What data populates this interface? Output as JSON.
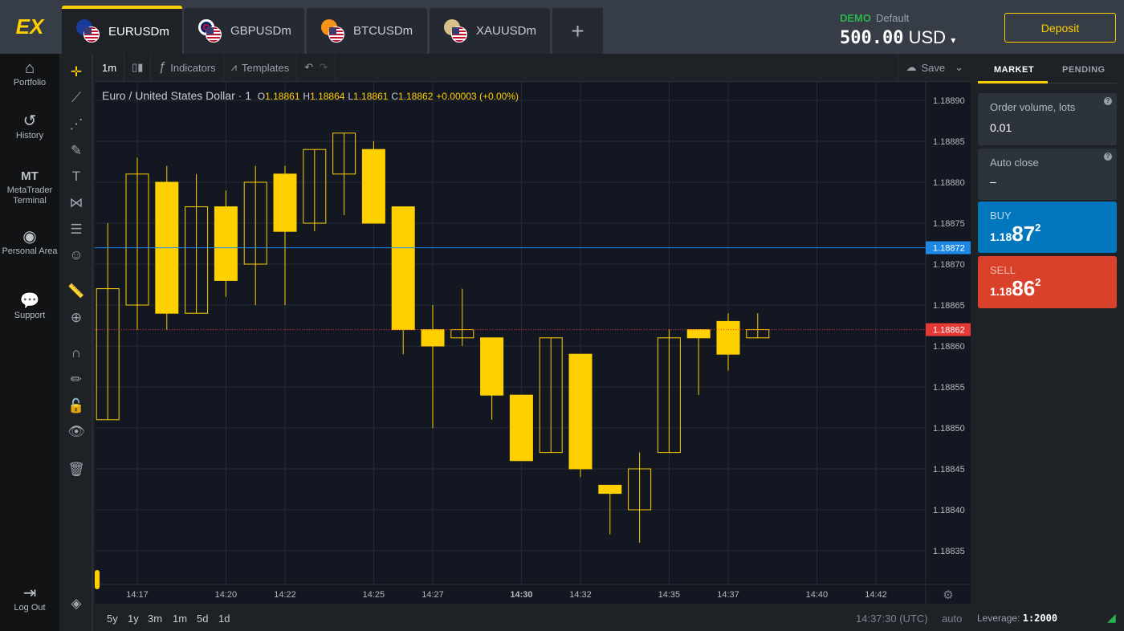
{
  "brand": {
    "logo": "EX",
    "accent": "#ffd000"
  },
  "tabs": [
    {
      "label": "EURUSDm",
      "active": true
    },
    {
      "label": "GBPUSDm"
    },
    {
      "label": "BTCUSDm"
    },
    {
      "label": "XAUUSDm"
    }
  ],
  "add_tab_icon": "plus-icon",
  "account": {
    "type": "DEMO",
    "name": "Default",
    "balance": "500.00",
    "currency": "USD",
    "deposit_label": "Deposit"
  },
  "nav": [
    {
      "label": "Portfolio",
      "icon": "briefcase-icon"
    },
    {
      "label": "History",
      "icon": "history-icon"
    },
    {
      "label": "MetaTrader Terminal",
      "icon_text": "MT"
    },
    {
      "label": "Personal Area",
      "icon": "user-icon"
    },
    {
      "label": "Support",
      "icon": "chat-icon"
    },
    {
      "label": "Log Out",
      "icon": "logout-icon"
    }
  ],
  "toolbar": {
    "interval": "1m",
    "indicators": "Indicators",
    "templates": "Templates",
    "save": "Save"
  },
  "legend": {
    "symbol": "Euro / United States Dollar",
    "interval": "1",
    "o_label": "O",
    "o": "1.18861",
    "h_label": "H",
    "h": "1.18864",
    "l_label": "L",
    "l": "1.18861",
    "c_label": "C",
    "c": "1.18862",
    "change": "+0.00003 (+0.00%)"
  },
  "ranges": [
    "5y",
    "1y",
    "3m",
    "1m",
    "5d",
    "1d"
  ],
  "status": {
    "time": "14:37:30 (UTC)",
    "scale": "auto",
    "leverage_label": "Leverage:",
    "leverage": "1:2000"
  },
  "order": {
    "tab_market": "MARKET",
    "tab_pending": "PENDING",
    "volume_label": "Order volume, lots",
    "volume": "0.01",
    "autoclose_label": "Auto close",
    "autoclose": "–",
    "buy_label": "BUY",
    "buy_prefix": "1.18",
    "buy_big": "87",
    "buy_sup": "2",
    "buy_color": "#0277bd",
    "sell_label": "SELL",
    "sell_prefix": "1.18",
    "sell_big": "86",
    "sell_sup": "2",
    "sell_color": "#d9412a"
  },
  "chart_data": {
    "type": "candlestick",
    "symbol": "EURUSDm",
    "interval": "1m",
    "y_ticks": [
      "1.18890",
      "1.18885",
      "1.18880",
      "1.18875",
      "1.18870",
      "1.18865",
      "1.18860",
      "1.18855",
      "1.18850",
      "1.18845",
      "1.18840",
      "1.18835"
    ],
    "ylim": [
      1.18831,
      1.18891
    ],
    "x_ticks": [
      "14:17",
      "14:20",
      "14:22",
      "14:25",
      "14:27",
      "14:30",
      "14:32",
      "14:35",
      "14:37",
      "14:40",
      "14:42"
    ],
    "xlim": [
      "14:15",
      "14:44"
    ],
    "ask_line": {
      "value": "1.18872",
      "color": "#1e88e5"
    },
    "bid_line": {
      "value": "1.18862",
      "color": "#e53935"
    },
    "candle_color": "#ffd000",
    "candles": [
      {
        "t": "14:16",
        "o": 1.18851,
        "h": 1.18875,
        "l": 1.18851,
        "c": 1.18867
      },
      {
        "t": "14:17",
        "o": 1.18865,
        "h": 1.18883,
        "l": 1.18862,
        "c": 1.18881
      },
      {
        "t": "14:18",
        "o": 1.1888,
        "h": 1.18882,
        "l": 1.18862,
        "c": 1.18864
      },
      {
        "t": "14:19",
        "o": 1.18864,
        "h": 1.18881,
        "l": 1.18864,
        "c": 1.18877
      },
      {
        "t": "14:20",
        "o": 1.18877,
        "h": 1.18879,
        "l": 1.18866,
        "c": 1.18868
      },
      {
        "t": "14:21",
        "o": 1.1887,
        "h": 1.18882,
        "l": 1.18865,
        "c": 1.1888
      },
      {
        "t": "14:22",
        "o": 1.18881,
        "h": 1.18882,
        "l": 1.18865,
        "c": 1.18874
      },
      {
        "t": "14:23",
        "o": 1.18875,
        "h": 1.18884,
        "l": 1.18874,
        "c": 1.18884
      },
      {
        "t": "14:24",
        "o": 1.18881,
        "h": 1.18886,
        "l": 1.18876,
        "c": 1.18886
      },
      {
        "t": "14:25",
        "o": 1.18884,
        "h": 1.18885,
        "l": 1.18875,
        "c": 1.18875
      },
      {
        "t": "14:26",
        "o": 1.18877,
        "h": 1.18877,
        "l": 1.18859,
        "c": 1.18862
      },
      {
        "t": "14:27",
        "o": 1.18862,
        "h": 1.18865,
        "l": 1.1885,
        "c": 1.1886
      },
      {
        "t": "14:28",
        "o": 1.18861,
        "h": 1.18867,
        "l": 1.1886,
        "c": 1.18862
      },
      {
        "t": "14:29",
        "o": 1.18861,
        "h": 1.18861,
        "l": 1.18851,
        "c": 1.18854
      },
      {
        "t": "14:30",
        "o": 1.18854,
        "h": 1.18854,
        "l": 1.18846,
        "c": 1.18846
      },
      {
        "t": "14:31",
        "o": 1.18847,
        "h": 1.18861,
        "l": 1.18847,
        "c": 1.18861
      },
      {
        "t": "14:32",
        "o": 1.18859,
        "h": 1.18859,
        "l": 1.18844,
        "c": 1.18845
      },
      {
        "t": "14:33",
        "o": 1.18843,
        "h": 1.18843,
        "l": 1.18837,
        "c": 1.18842
      },
      {
        "t": "14:34",
        "o": 1.1884,
        "h": 1.18847,
        "l": 1.18836,
        "c": 1.18845
      },
      {
        "t": "14:35",
        "o": 1.18847,
        "h": 1.18862,
        "l": 1.18847,
        "c": 1.18861
      },
      {
        "t": "14:36",
        "o": 1.18862,
        "h": 1.18862,
        "l": 1.18854,
        "c": 1.18861
      },
      {
        "t": "14:37",
        "o": 1.18863,
        "h": 1.18864,
        "l": 1.18857,
        "c": 1.18859
      },
      {
        "t": "14:38",
        "o": 1.18861,
        "h": 1.18864,
        "l": 1.18861,
        "c": 1.18862
      }
    ]
  }
}
